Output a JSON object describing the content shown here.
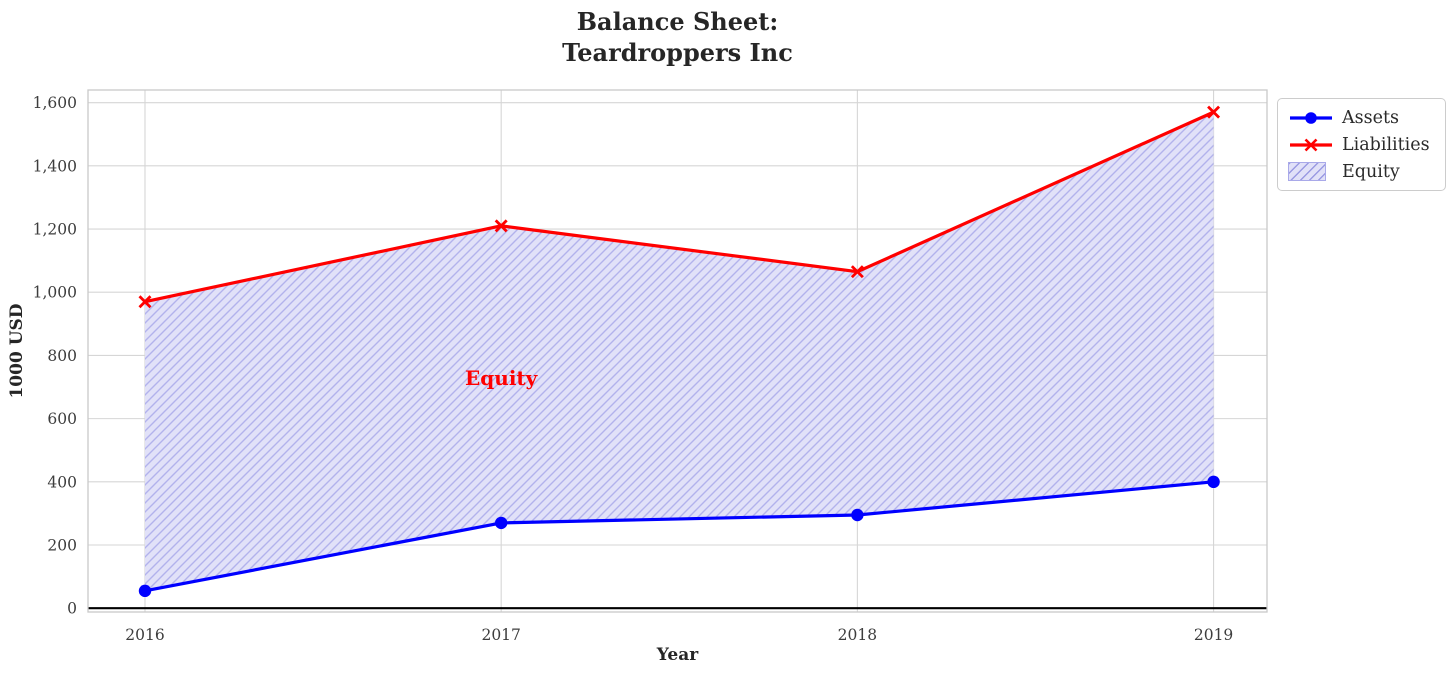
{
  "chart_data": {
    "type": "line",
    "title": "Balance Sheet:\nTeardroppers Inc",
    "xlabel": "Year",
    "ylabel": "1000 USD",
    "x": [
      2016,
      2017,
      2018,
      2019
    ],
    "series": [
      {
        "name": "Assets",
        "color": "#0000ff",
        "marker": "circle",
        "line_width": 3.2,
        "values": [
          55,
          270,
          295,
          400
        ]
      },
      {
        "name": "Liabilities",
        "color": "#ff0000",
        "marker": "x",
        "line_width": 3.2,
        "values": [
          970,
          1210,
          1065,
          1570
        ]
      }
    ],
    "fill_between": {
      "name": "Equity",
      "upper": "Liabilities",
      "lower": "Assets",
      "fill_color": "#e1e1f8",
      "hatch": "//",
      "hatch_color": "#b2b2ec"
    },
    "annotations": [
      {
        "text": "Equity",
        "x": 2017,
        "y": 730,
        "color": "#ff0000"
      }
    ],
    "xlim": [
      2015.84,
      2019.15
    ],
    "ylim": [
      -12,
      1640
    ],
    "xticks": {
      "values": [
        2016,
        2017,
        2018,
        2019
      ],
      "labels": [
        "2016",
        "2017",
        "2018",
        "2019"
      ]
    },
    "yticks": {
      "values": [
        0,
        200,
        400,
        600,
        800,
        1000,
        1200,
        1400,
        1600
      ],
      "labels": [
        "0",
        "200",
        "400",
        "600",
        "800",
        "1,000",
        "1,200",
        "1,400",
        "1,600"
      ]
    },
    "grid": true,
    "zero_line": {
      "value": 0,
      "color": "#000000",
      "width": 2.2
    },
    "legend": {
      "position": "upper-right-outside",
      "entries": [
        "Assets",
        "Liabilities",
        "Equity"
      ]
    }
  }
}
